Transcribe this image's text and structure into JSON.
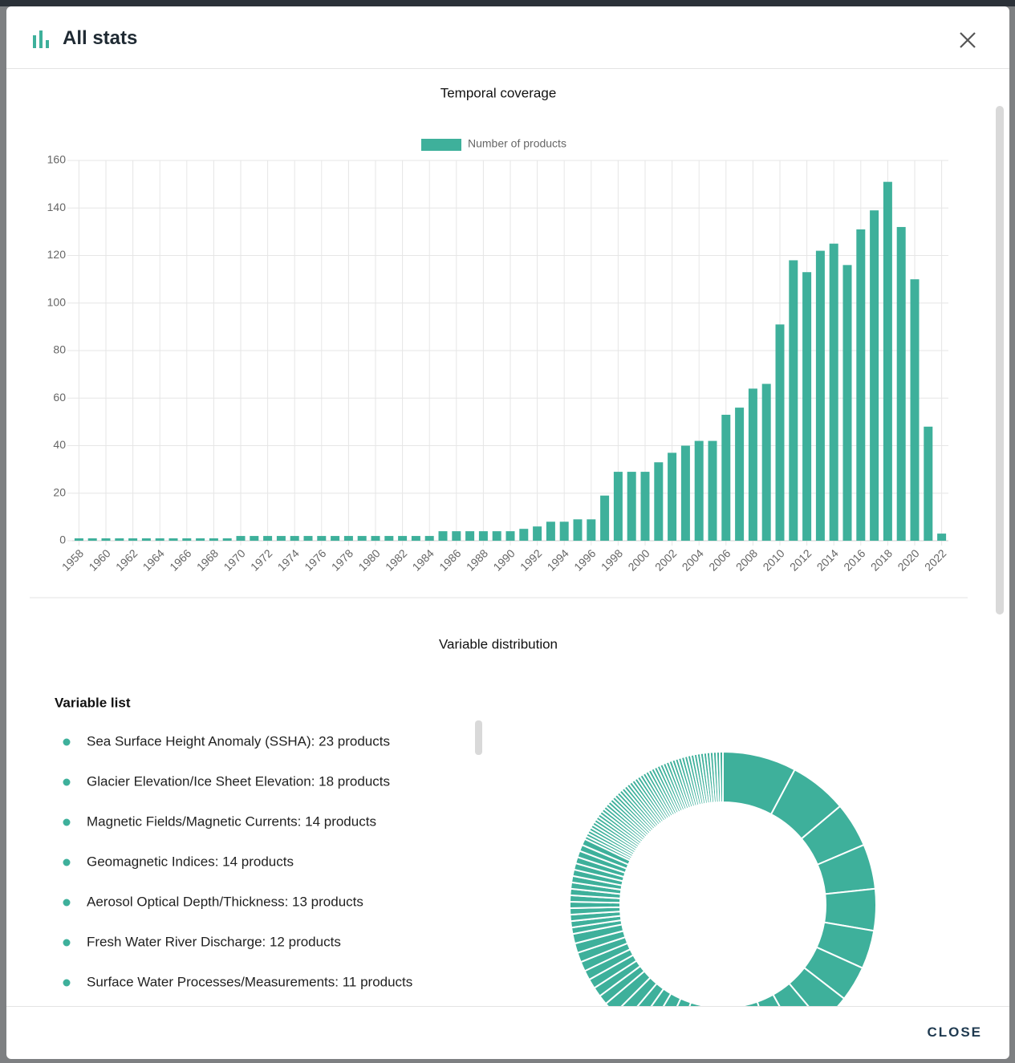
{
  "header": {
    "title": "All stats"
  },
  "footer": {
    "close": "CLOSE"
  },
  "variable_list": {
    "title": "Variable list",
    "items": [
      "Sea Surface Height Anomaly (SSHA): 23 products",
      "Glacier Elevation/Ice Sheet Elevation: 18 products",
      "Magnetic Fields/Magnetic Currents: 14 products",
      "Geomagnetic Indices: 14 products",
      "Aerosol Optical Depth/Thickness: 13 products",
      "Fresh Water River Discharge: 12 products",
      "Surface Water Processes/Measurements: 11 products"
    ]
  },
  "chart_data": [
    {
      "type": "bar",
      "title": "Temporal coverage",
      "categories": [
        "1958",
        null,
        "1960",
        null,
        "1962",
        null,
        "1964",
        null,
        "1966",
        null,
        "1968",
        null,
        "1970",
        null,
        "1972",
        null,
        "1974",
        null,
        "1976",
        null,
        "1978",
        null,
        "1980",
        null,
        "1982",
        null,
        "1984",
        null,
        "1986",
        null,
        "1988",
        null,
        "1990",
        null,
        "1992",
        null,
        "1994",
        null,
        "1996",
        null,
        "1998",
        null,
        "2000",
        null,
        "2002",
        null,
        "2004",
        null,
        "2006",
        null,
        "2008",
        null,
        "2010",
        null,
        "2012",
        null,
        "2014",
        null,
        "2016",
        null,
        "2018",
        null,
        "2020",
        null,
        "2022"
      ],
      "series": [
        {
          "name": "Number of products",
          "color": "#3eb09b",
          "values": [
            1,
            1,
            1,
            1,
            1,
            1,
            1,
            1,
            1,
            1,
            1,
            1,
            2,
            2,
            2,
            2,
            2,
            2,
            2,
            2,
            2,
            2,
            2,
            2,
            2,
            2,
            2,
            4,
            4,
            4,
            4,
            4,
            4,
            5,
            6,
            8,
            8,
            9,
            9,
            19,
            29,
            29,
            29,
            33,
            37,
            40,
            42,
            42,
            53,
            56,
            64,
            66,
            91,
            118,
            113,
            122,
            125,
            116,
            131,
            139,
            151,
            132,
            110,
            48,
            3
          ]
        }
      ],
      "ylim": [
        0,
        160
      ],
      "yticks": [
        0,
        20,
        40,
        60,
        80,
        100,
        120,
        140,
        160
      ],
      "grid": true,
      "legend": "top"
    },
    {
      "type": "pie",
      "title": "Variable distribution",
      "donut": true,
      "color": "#3eb09b",
      "values": [
        23,
        18,
        14,
        14,
        13,
        12,
        11,
        10,
        9,
        8,
        7,
        7,
        6,
        6,
        5,
        5,
        5,
        4,
        4,
        4,
        4,
        3,
        3,
        3,
        3,
        3,
        3,
        3,
        3,
        2,
        2,
        2,
        2,
        2,
        2,
        2,
        2,
        2,
        2,
        2,
        2,
        2,
        2,
        2,
        1,
        1,
        1,
        1,
        1,
        1,
        1,
        1,
        1,
        1,
        1,
        1,
        1,
        1,
        1,
        1,
        1,
        1,
        1,
        1,
        1,
        1,
        1,
        1,
        1,
        1,
        1,
        1,
        1,
        1,
        1,
        1,
        1,
        1,
        1,
        1,
        1,
        1,
        1,
        1,
        1,
        1,
        1,
        1,
        1,
        1,
        1,
        1,
        1,
        1,
        1,
        1,
        1
      ]
    }
  ]
}
